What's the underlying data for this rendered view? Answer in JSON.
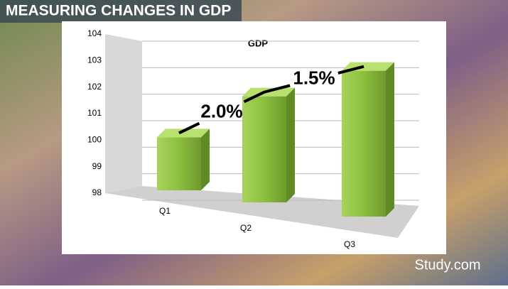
{
  "slide_title": "MEASURING CHANGES IN GDP",
  "watermark": "Study.com",
  "chart_data": {
    "type": "bar3d",
    "title": "GDP",
    "categories": [
      "Q1",
      "Q2",
      "Q3"
    ],
    "values": [
      100,
      102,
      103.5
    ],
    "color": "#8cbf3f",
    "ylim": [
      98,
      104
    ],
    "yticks": [
      98,
      99,
      100,
      101,
      102,
      103,
      104
    ],
    "grid": true,
    "annotations": [
      "2.0%",
      "1.5%"
    ]
  }
}
